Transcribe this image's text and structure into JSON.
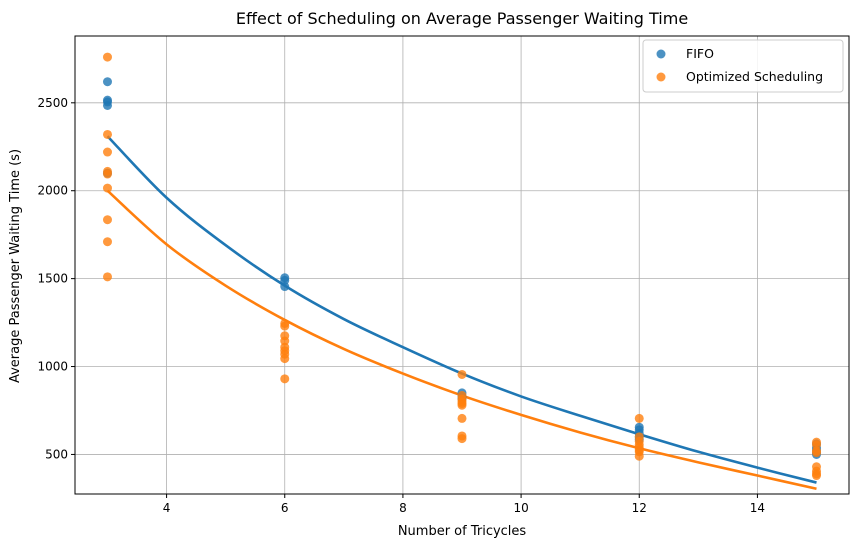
{
  "chart_data": {
    "type": "scatter",
    "title": "Effect of Scheduling on Average Passenger Waiting Time",
    "xlabel": "Number of Tricycles",
    "ylabel": "Average Passenger Waiting Time (s)",
    "xlim": [
      2.45,
      15.55
    ],
    "ylim": [
      275,
      2880
    ],
    "xticks": [
      4,
      6,
      8,
      10,
      12,
      14
    ],
    "yticks": [
      500,
      1000,
      1500,
      2000,
      2500
    ],
    "grid": true,
    "legend_position": "top-right",
    "series": [
      {
        "name": "FIFO",
        "color": "#1f77b4",
        "points": [
          [
            3,
            2620
          ],
          [
            3,
            2515
          ],
          [
            3,
            2505
          ],
          [
            3,
            2485
          ],
          [
            3,
            2100
          ],
          [
            6,
            1505
          ],
          [
            6,
            1490
          ],
          [
            6,
            1455
          ],
          [
            9,
            850
          ],
          [
            9,
            830
          ],
          [
            9,
            815
          ],
          [
            12,
            655
          ],
          [
            12,
            640
          ],
          [
            12,
            620
          ],
          [
            12,
            600
          ],
          [
            12,
            585
          ],
          [
            15,
            560
          ],
          [
            15,
            540
          ],
          [
            15,
            525
          ],
          [
            15,
            510
          ],
          [
            15,
            500
          ]
        ],
        "trend": [
          [
            3,
            2310
          ],
          [
            4,
            1960
          ],
          [
            5,
            1690
          ],
          [
            6,
            1460
          ],
          [
            7,
            1270
          ],
          [
            8,
            1110
          ],
          [
            9,
            960
          ],
          [
            10,
            830
          ],
          [
            11,
            720
          ],
          [
            12,
            615
          ],
          [
            13,
            515
          ],
          [
            14,
            425
          ],
          [
            15,
            340
          ]
        ]
      },
      {
        "name": "Optimized Scheduling",
        "color": "#ff7f0e",
        "points": [
          [
            3,
            2760
          ],
          [
            3,
            2320
          ],
          [
            3,
            2220
          ],
          [
            3,
            2110
          ],
          [
            3,
            2095
          ],
          [
            3,
            2015
          ],
          [
            3,
            1835
          ],
          [
            3,
            1710
          ],
          [
            3,
            1510
          ],
          [
            6,
            1245
          ],
          [
            6,
            1230
          ],
          [
            6,
            1175
          ],
          [
            6,
            1145
          ],
          [
            6,
            1110
          ],
          [
            6,
            1090
          ],
          [
            6,
            1070
          ],
          [
            6,
            1045
          ],
          [
            6,
            930
          ],
          [
            9,
            955
          ],
          [
            9,
            835
          ],
          [
            9,
            815
          ],
          [
            9,
            800
          ],
          [
            9,
            790
          ],
          [
            9,
            780
          ],
          [
            9,
            705
          ],
          [
            9,
            605
          ],
          [
            9,
            590
          ],
          [
            12,
            705
          ],
          [
            12,
            600
          ],
          [
            12,
            575
          ],
          [
            12,
            555
          ],
          [
            12,
            540
          ],
          [
            12,
            525
          ],
          [
            12,
            515
          ],
          [
            12,
            490
          ],
          [
            15,
            570
          ],
          [
            15,
            555
          ],
          [
            15,
            520
          ],
          [
            15,
            510
          ],
          [
            15,
            430
          ],
          [
            15,
            405
          ],
          [
            15,
            390
          ],
          [
            15,
            380
          ]
        ],
        "trend": [
          [
            3,
            2000
          ],
          [
            4,
            1695
          ],
          [
            5,
            1460
          ],
          [
            6,
            1265
          ],
          [
            7,
            1100
          ],
          [
            8,
            960
          ],
          [
            9,
            835
          ],
          [
            10,
            725
          ],
          [
            11,
            625
          ],
          [
            12,
            535
          ],
          [
            13,
            455
          ],
          [
            14,
            380
          ],
          [
            15,
            305
          ]
        ]
      }
    ]
  }
}
